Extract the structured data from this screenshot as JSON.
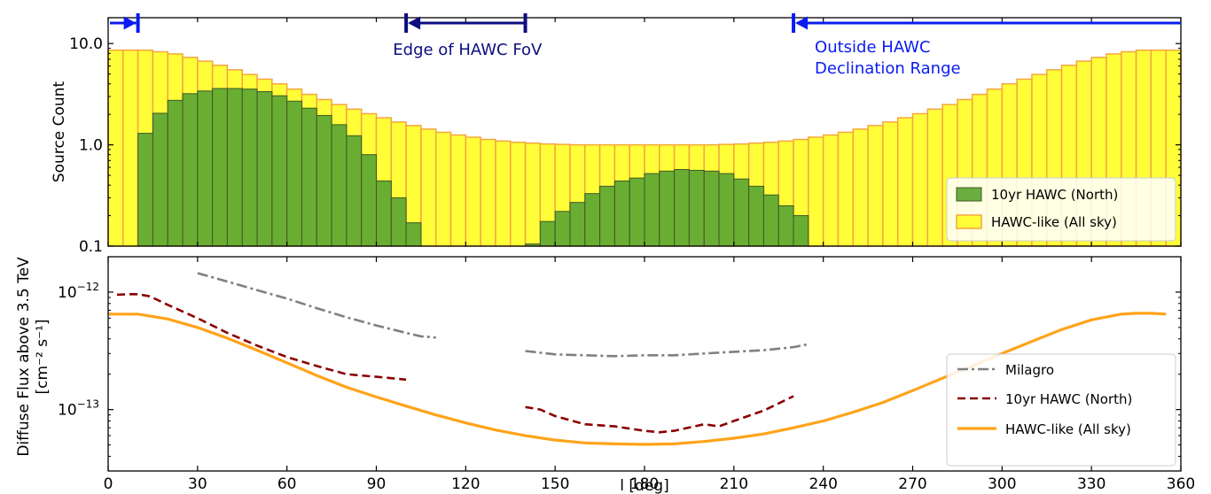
{
  "chart_data": [
    {
      "type": "bar",
      "panel": "top",
      "ylabel": "Source Count",
      "yscale": "log",
      "ylim": [
        0.1,
        18
      ],
      "xlim": [
        0,
        360
      ],
      "ytick_labels": [
        "0.1",
        "1.0",
        "10.0"
      ],
      "ytick_values": [
        0.1,
        1,
        10
      ],
      "bin_width": 5,
      "x": [
        0,
        5,
        10,
        15,
        20,
        25,
        30,
        35,
        40,
        45,
        50,
        55,
        60,
        65,
        70,
        75,
        80,
        85,
        90,
        95,
        100,
        105,
        110,
        115,
        120,
        125,
        130,
        135,
        140,
        145,
        150,
        155,
        160,
        165,
        170,
        175,
        180,
        185,
        190,
        195,
        200,
        205,
        210,
        215,
        220,
        225,
        230,
        235,
        240,
        245,
        250,
        255,
        260,
        265,
        270,
        275,
        280,
        285,
        290,
        295,
        300,
        305,
        310,
        315,
        320,
        325,
        330,
        335,
        340,
        345,
        350,
        355
      ],
      "series": [
        {
          "name": "10yr HAWC (North)",
          "color": "#5da633",
          "values": [
            null,
            null,
            1.3,
            2.05,
            2.75,
            3.2,
            3.4,
            3.6,
            3.6,
            3.55,
            3.35,
            3.05,
            2.7,
            2.3,
            1.95,
            1.58,
            1.23,
            0.8,
            0.44,
            0.3,
            0.17,
            null,
            null,
            null,
            null,
            null,
            null,
            null,
            0.105,
            0.175,
            0.22,
            0.27,
            0.33,
            0.39,
            0.44,
            0.47,
            0.52,
            0.55,
            0.57,
            0.56,
            0.55,
            0.52,
            0.46,
            0.39,
            0.32,
            0.25,
            0.2,
            null,
            null,
            null,
            null,
            null,
            null,
            null,
            null,
            null,
            null,
            null,
            null,
            null,
            null,
            null,
            null,
            null,
            null,
            null,
            null,
            null,
            null,
            null,
            null,
            null
          ]
        },
        {
          "name": "HAWC-like (All sky)",
          "color": "#fffe38",
          "edgecolor": "#f4a640",
          "values": [
            8.6,
            8.6,
            8.6,
            8.3,
            7.9,
            7.3,
            6.7,
            6.1,
            5.5,
            4.95,
            4.45,
            4.0,
            3.55,
            3.15,
            2.8,
            2.5,
            2.25,
            2.03,
            1.85,
            1.68,
            1.55,
            1.43,
            1.33,
            1.25,
            1.19,
            1.13,
            1.09,
            1.06,
            1.04,
            1.02,
            1.01,
            1.0,
            1.0,
            1.0,
            1.0,
            1.0,
            1.0,
            1.0,
            1.0,
            1.0,
            1.0,
            1.01,
            1.02,
            1.04,
            1.06,
            1.09,
            1.13,
            1.19,
            1.25,
            1.33,
            1.43,
            1.55,
            1.68,
            1.85,
            2.03,
            2.25,
            2.5,
            2.8,
            3.15,
            3.55,
            4.0,
            4.45,
            4.95,
            5.5,
            6.1,
            6.7,
            7.3,
            7.9,
            8.3,
            8.6,
            8.6,
            8.6
          ]
        }
      ],
      "annotations": [
        {
          "text": "Edge of HAWC FoV",
          "range": [
            100,
            140
          ],
          "color": "#0d0d80"
        },
        {
          "text": "Outside HAWC Declination Range",
          "lines": [
            "Outside HAWC",
            "Declination Range"
          ],
          "range": [
            230,
            360
          ],
          "color": "#0a1cf0"
        },
        {
          "text": "",
          "range": [
            0,
            10
          ],
          "color": "#0a1cf0"
        }
      ],
      "legend": {
        "placement": "lower-right",
        "entries": [
          "10yr HAWC (North)",
          "HAWC-like (All sky)"
        ]
      }
    },
    {
      "type": "line",
      "panel": "bottom",
      "xlabel": "l [deg]",
      "ylabel": "Diffuse Flux above 3.5 TeV",
      "ylabel2": "[cm⁻² s⁻¹]",
      "yscale": "log",
      "ylim": [
        3e-14,
        2e-12
      ],
      "xlim": [
        0,
        360
      ],
      "xtick_values": [
        0,
        30,
        60,
        90,
        120,
        150,
        180,
        210,
        240,
        270,
        300,
        330,
        360
      ],
      "ytick_labels": [
        {
          "base": "10",
          "exp": "−12",
          "value": 1e-12
        },
        {
          "base": "10",
          "exp": "−13",
          "value": 1e-13
        }
      ],
      "series": [
        {
          "name": "Milagro",
          "color": "#808080",
          "style": "dashdot",
          "segments": [
            {
              "x": [
                30,
                40,
                50,
                60,
                70,
                80,
                90,
                100,
                105,
                110
              ],
              "y": [
                1.45e-12,
                1.23e-12,
                1.04e-12,
                8.8e-13,
                7.3e-13,
                6.1e-13,
                5.2e-13,
                4.5e-13,
                4.2e-13,
                4.1e-13
              ]
            },
            {
              "x": [
                140,
                150,
                160,
                170,
                180,
                190,
                200,
                210,
                220,
                230,
                235
              ],
              "y": [
                3.15e-13,
                2.95e-13,
                2.9e-13,
                2.85e-13,
                2.9e-13,
                2.9e-13,
                3e-13,
                3.1e-13,
                3.2e-13,
                3.4e-13,
                3.6e-13
              ]
            }
          ]
        },
        {
          "name": "10yr HAWC (North)",
          "color": "#8b0000",
          "style": "dashed",
          "segments": [
            {
              "x": [
                3,
                7,
                10,
                14,
                20,
                30,
                40,
                50,
                60,
                70,
                80,
                90,
                100
              ],
              "y": [
                9.5e-13,
                9.6e-13,
                9.6e-13,
                9.2e-13,
                7.8e-13,
                6e-13,
                4.5e-13,
                3.5e-13,
                2.8e-13,
                2.35e-13,
                2e-13,
                1.9e-13,
                1.8e-13
              ]
            },
            {
              "x": [
                140,
                145,
                150,
                160,
                170,
                180,
                185,
                190,
                200,
                205,
                210,
                220,
                230
              ],
              "y": [
                1.05e-13,
                1e-13,
                8.8e-14,
                7.5e-14,
                7.2e-14,
                6.6e-14,
                6.4e-14,
                6.6e-14,
                7.5e-14,
                7.2e-14,
                8e-14,
                9.8e-14,
                1.3e-13
              ]
            }
          ]
        },
        {
          "name": "HAWC-like (All sky)",
          "color": "#ffa319",
          "style": "solid",
          "segments": [
            {
              "x": [
                0,
                5,
                10,
                20,
                30,
                40,
                50,
                60,
                70,
                80,
                90,
                100,
                110,
                120,
                130,
                140,
                150,
                160,
                170,
                180,
                190,
                200,
                210,
                220,
                230,
                240,
                250,
                260,
                270,
                280,
                290,
                300,
                310,
                320,
                330,
                340,
                345,
                350,
                355
              ],
              "y": [
                6.5e-13,
                6.5e-13,
                6.5e-13,
                5.9e-13,
                5e-13,
                4.05e-13,
                3.2e-13,
                2.5e-13,
                1.95e-13,
                1.55e-13,
                1.28e-13,
                1.07e-13,
                9e-14,
                7.7e-14,
                6.7e-14,
                6e-14,
                5.5e-14,
                5.2e-14,
                5.1e-14,
                5.05e-14,
                5.1e-14,
                5.35e-14,
                5.7e-14,
                6.2e-14,
                7e-14,
                8e-14,
                9.5e-14,
                1.15e-13,
                1.45e-13,
                1.85e-13,
                2.35e-13,
                3e-13,
                3.8e-13,
                4.8e-13,
                5.8e-13,
                6.5e-13,
                6.6e-13,
                6.6e-13,
                6.5e-13
              ]
            }
          ]
        }
      ],
      "legend": {
        "placement": "lower-right",
        "entries": [
          "Milagro",
          "10yr HAWC (North)",
          "HAWC-like (All sky)"
        ]
      }
    }
  ]
}
